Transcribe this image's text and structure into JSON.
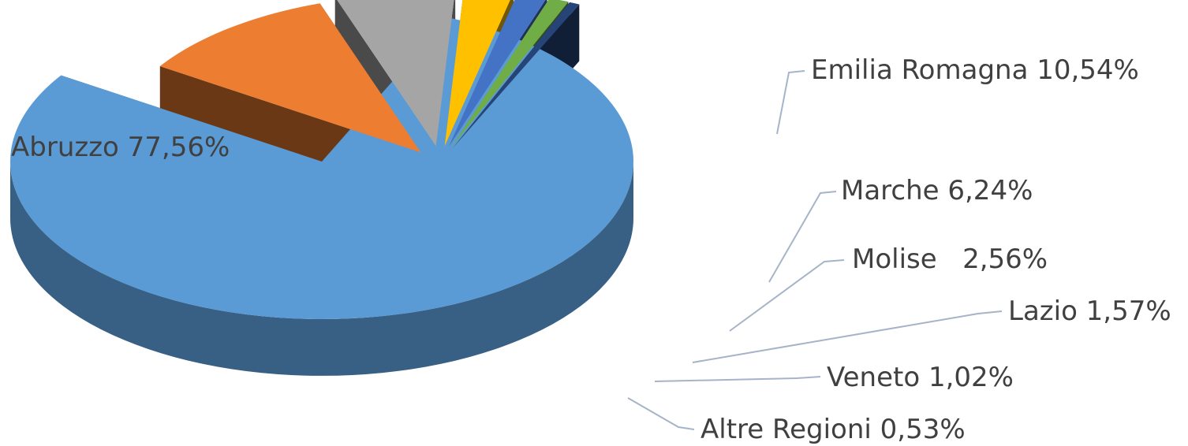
{
  "chart_data": {
    "type": "pie",
    "title": "",
    "categories": [
      "Abruzzo",
      "Emilia Romagna",
      "Marche",
      "Molise",
      "Lazio",
      "Veneto",
      "Altre Regioni"
    ],
    "values": [
      77.56,
      10.54,
      6.24,
      2.56,
      1.57,
      1.02,
      0.53
    ],
    "labels": [
      "Abruzzo  77,56%",
      "Emilia Romagna 10,54%",
      "Marche 6,24%",
      "Molise   2,56%",
      "Lazio 1,57%",
      "Veneto 1,02%",
      "Altre Regioni 0,53%"
    ],
    "colors": [
      "#5b9bd5",
      "#ed7d31",
      "#a5a5a5",
      "#ffc000",
      "#4472c4",
      "#70ad47",
      "#264478"
    ],
    "style": "3d-exploded",
    "legend": "none"
  }
}
